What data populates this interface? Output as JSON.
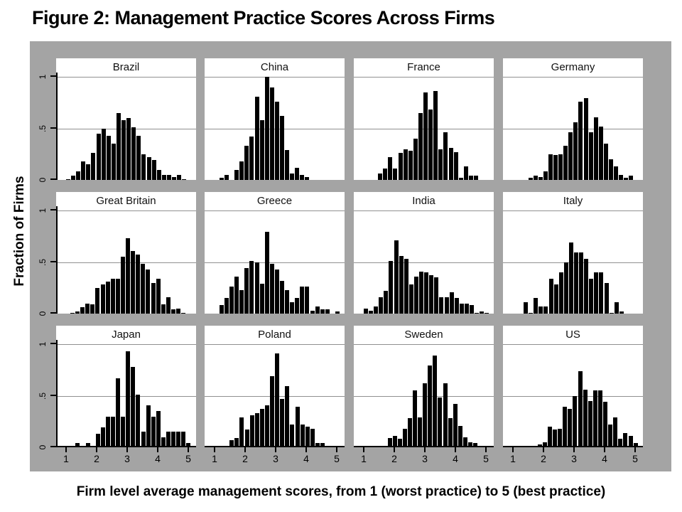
{
  "figure": {
    "title": "Figure 2: Management Practice Scores Across Firms",
    "y_axis_title": "Fraction of Firms",
    "caption": "Firm level average management scores, from 1 (worst practice) to 5 (best practice)"
  },
  "colors": {
    "canvas_gray": "#a4a4a4",
    "panel_bg": "#ffffff",
    "bar": "#000000",
    "gridline": "#909090",
    "axis": "#000000",
    "text": "#000000"
  },
  "chart_data": {
    "type": "bar",
    "subtype": "histogram-small-multiples",
    "title": "Figure 2: Management Practice Scores Across Firms",
    "xlabel": "Firm level average management scores, from 1 (worst practice) to 5 (best practice)",
    "ylabel": "Fraction of Firms",
    "layout": {
      "rows": 3,
      "cols": 4,
      "x_range": [
        1,
        5
      ],
      "y_range": [
        0,
        1
      ],
      "x_ticks": [
        1,
        2,
        3,
        4,
        5
      ],
      "x_tick_labels": [
        "1",
        "2",
        "3",
        "4",
        "5"
      ],
      "y_ticks": [
        0,
        0.5,
        1
      ],
      "y_tick_labels": [
        "0",
        ".5",
        "1"
      ],
      "gridlines_at": [
        0.5,
        1
      ],
      "y_axis_on_first_column_only": true,
      "x_axis_on_bottom_row_only": true
    },
    "bin_step": 0.165,
    "panels": [
      {
        "country": "Brazil",
        "start": 1.0,
        "values": [
          0.01,
          0.04,
          0.08,
          0.18,
          0.15,
          0.26,
          0.45,
          0.5,
          0.43,
          0.35,
          0.65,
          0.58,
          0.6,
          0.51,
          0.43,
          0.25,
          0.22,
          0.19,
          0.1,
          0.05,
          0.05,
          0.03,
          0.05,
          0.01
        ]
      },
      {
        "country": "China",
        "start": 1.16,
        "values": [
          0.02,
          0.05,
          0,
          0.1,
          0.18,
          0.33,
          0.42,
          0.81,
          0.58,
          1.0,
          0.9,
          0.76,
          0.62,
          0.29,
          0.06,
          0.12,
          0.05,
          0.03
        ]
      },
      {
        "country": "France",
        "start": 1.47,
        "values": [
          0.06,
          0.11,
          0.22,
          0.11,
          0.26,
          0.3,
          0.28,
          0.4,
          0.65,
          0.85,
          0.68,
          0.86,
          0.3,
          0.46,
          0.31,
          0.27,
          0.02,
          0.13,
          0.04,
          0.04
        ]
      },
      {
        "country": "Germany",
        "start": 1.5,
        "values": [
          0.02,
          0.04,
          0.03,
          0.08,
          0.25,
          0.24,
          0.25,
          0.33,
          0.46,
          0.56,
          0.76,
          0.79,
          0.46,
          0.61,
          0.52,
          0.35,
          0.2,
          0.13,
          0.05,
          0.02,
          0.04
        ]
      },
      {
        "country": "Great Britain",
        "start": 1.14,
        "values": [
          0.01,
          0.02,
          0.06,
          0.1,
          0.09,
          0.25,
          0.28,
          0.31,
          0.34,
          0.34,
          0.55,
          0.73,
          0.61,
          0.57,
          0.48,
          0.43,
          0.3,
          0.34,
          0.09,
          0.16,
          0.04,
          0.05,
          0.01
        ]
      },
      {
        "country": "Greece",
        "start": 1.16,
        "values": [
          0.08,
          0.15,
          0.26,
          0.36,
          0.23,
          0.44,
          0.51,
          0.5,
          0.29,
          0.79,
          0.48,
          0.43,
          0.32,
          0.23,
          0.11,
          0.15,
          0.26,
          0.26,
          0.03,
          0.07,
          0.04,
          0.04,
          0,
          0.02
        ]
      },
      {
        "country": "India",
        "start": 1.0,
        "values": [
          0.05,
          0.03,
          0.07,
          0.16,
          0.22,
          0.51,
          0.71,
          0.56,
          0.53,
          0.28,
          0.36,
          0.41,
          0.4,
          0.37,
          0.35,
          0.16,
          0.16,
          0.21,
          0.15,
          0.1,
          0.1,
          0.08,
          0.01,
          0.02,
          0.01
        ]
      },
      {
        "country": "Italy",
        "start": 1.35,
        "values": [
          0.11,
          0.01,
          0.15,
          0.07,
          0.07,
          0.34,
          0.28,
          0.4,
          0.5,
          0.69,
          0.59,
          0.59,
          0.53,
          0.34,
          0.4,
          0.4,
          0.3,
          0.01,
          0.11,
          0.02
        ]
      },
      {
        "country": "Japan",
        "start": 1.31,
        "values": [
          0.04,
          0,
          0.04,
          0,
          0.13,
          0.19,
          0.3,
          0.3,
          0.67,
          0.3,
          0.93,
          0.78,
          0.51,
          0.15,
          0.41,
          0.3,
          0.35,
          0.1,
          0.15,
          0.15,
          0.15,
          0.15,
          0.04
        ]
      },
      {
        "country": "Poland",
        "start": 1.0,
        "values": [
          0.01,
          0.01,
          0,
          0.07,
          0.09,
          0.29,
          0.17,
          0.31,
          0.33,
          0.37,
          0.41,
          0.69,
          0.91,
          0.47,
          0.59,
          0.22,
          0.39,
          0.22,
          0.2,
          0.18,
          0.04,
          0.04,
          0.01
        ]
      },
      {
        "country": "Sweden",
        "start": 1.45,
        "values": [
          0.01,
          0,
          0.09,
          0.11,
          0.08,
          0.18,
          0.28,
          0.55,
          0.29,
          0.62,
          0.79,
          0.89,
          0.48,
          0.62,
          0.28,
          0.42,
          0.21,
          0.1,
          0.05,
          0.04,
          0.01
        ]
      },
      {
        "country": "US",
        "start": 1.48,
        "values": [
          0.01,
          0,
          0.03,
          0.05,
          0.2,
          0.17,
          0.18,
          0.39,
          0.37,
          0.5,
          0.74,
          0.56,
          0.45,
          0.55,
          0.55,
          0.44,
          0.22,
          0.29,
          0.08,
          0.14,
          0.11,
          0.04
        ]
      }
    ]
  }
}
